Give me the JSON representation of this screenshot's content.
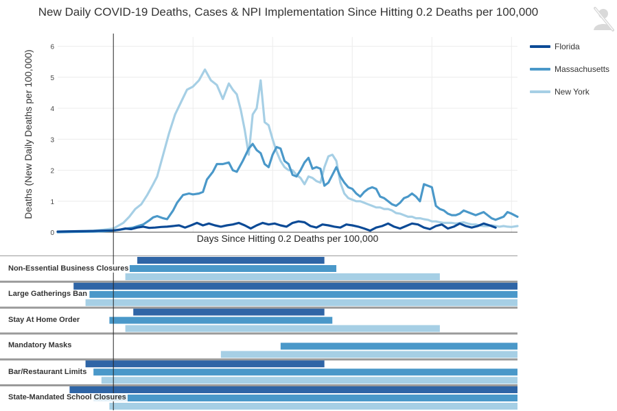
{
  "title": "New Daily  COVID-19 Deaths, Cases & NPI Implementation Since Hitting 0.2 Deaths per 100,000",
  "icon": "person-off-icon",
  "colors": {
    "Florida": "#0b4a96",
    "Massachusetts": "#4a98c9",
    "New York": "#a6cfe5"
  },
  "chart_data": {
    "type": "line",
    "title": "New Daily  COVID-19 Deaths, Cases & NPI Implementation Since Hitting 0.2 Deaths per 100,000",
    "xlabel": "Days Since Hitting 0.2 Deaths per 100,000",
    "ylabel": "Deaths (New Daily Deaths per 100,000)",
    "ylim": [
      0,
      6.3
    ],
    "xlim": [
      -28,
      203
    ],
    "yticks": [
      "0",
      "1",
      "2",
      "3",
      "4",
      "5",
      "6"
    ],
    "grid": true,
    "legend_position": "right",
    "series": [
      {
        "name": "Florida",
        "x": [
          -28,
          -20,
          -10,
          -5,
          0,
          3,
          6,
          9,
          12,
          15,
          18,
          21,
          24,
          27,
          30,
          33,
          36,
          39,
          42,
          45,
          48,
          51,
          54,
          57,
          60,
          63,
          66,
          69,
          72,
          75,
          78,
          81,
          84,
          87,
          90,
          93,
          96,
          99,
          102,
          105,
          108,
          111,
          114,
          117,
          120,
          123,
          126,
          129,
          132,
          135,
          138,
          141,
          144,
          147,
          150,
          153,
          156,
          159,
          162,
          165,
          168,
          171,
          174,
          177,
          180,
          183,
          186,
          189,
          192
        ],
        "y": [
          0.02,
          0.03,
          0.04,
          0.05,
          0.06,
          0.08,
          0.12,
          0.1,
          0.15,
          0.18,
          0.14,
          0.15,
          0.17,
          0.18,
          0.2,
          0.22,
          0.15,
          0.22,
          0.3,
          0.22,
          0.28,
          0.22,
          0.18,
          0.22,
          0.25,
          0.3,
          0.22,
          0.12,
          0.22,
          0.3,
          0.25,
          0.28,
          0.22,
          0.18,
          0.3,
          0.35,
          0.32,
          0.2,
          0.15,
          0.25,
          0.22,
          0.18,
          0.15,
          0.25,
          0.22,
          0.18,
          0.12,
          0.05,
          0.15,
          0.2,
          0.28,
          0.18,
          0.12,
          0.2,
          0.28,
          0.25,
          0.15,
          0.1,
          0.2,
          0.25,
          0.12,
          0.18,
          0.28,
          0.2,
          0.15,
          0.2,
          0.28,
          0.22,
          0.15
        ]
      },
      {
        "name": "Massachusetts",
        "x": [
          -28,
          -20,
          -10,
          -5,
          0,
          5,
          10,
          15,
          18,
          20,
          22,
          25,
          27,
          30,
          32,
          35,
          38,
          40,
          43,
          45,
          47,
          50,
          52,
          55,
          58,
          60,
          62,
          65,
          68,
          70,
          72,
          74,
          76,
          78,
          80,
          82,
          84,
          86,
          88,
          90,
          92,
          94,
          96,
          98,
          100,
          102,
          104,
          106,
          108,
          110,
          112,
          114,
          116,
          118,
          120,
          122,
          124,
          126,
          128,
          130,
          132,
          134,
          136,
          138,
          140,
          142,
          144,
          146,
          148,
          150,
          152,
          154,
          156,
          158,
          160,
          162,
          164,
          166,
          168,
          170,
          172,
          174,
          176,
          178,
          180,
          182,
          184,
          186,
          188,
          190,
          192,
          194,
          196,
          198,
          200,
          203
        ],
        "y": [
          0,
          0.01,
          0.02,
          0.03,
          0.05,
          0.1,
          0.15,
          0.25,
          0.38,
          0.48,
          0.52,
          0.45,
          0.42,
          0.7,
          0.95,
          1.2,
          1.25,
          1.22,
          1.25,
          1.3,
          1.7,
          1.95,
          2.2,
          2.2,
          2.25,
          2.0,
          1.95,
          2.3,
          2.7,
          2.85,
          2.65,
          2.55,
          2.2,
          2.1,
          2.5,
          2.75,
          2.7,
          2.3,
          2.2,
          1.85,
          1.8,
          2.0,
          2.25,
          2.4,
          2.05,
          2.1,
          2.05,
          1.5,
          1.6,
          1.85,
          2.1,
          1.8,
          1.6,
          1.45,
          1.4,
          1.25,
          1.15,
          1.3,
          1.4,
          1.45,
          1.4,
          1.15,
          1.1,
          1.0,
          0.9,
          0.85,
          0.95,
          1.1,
          1.15,
          1.25,
          1.15,
          1.0,
          1.55,
          1.5,
          1.45,
          0.85,
          0.75,
          0.7,
          0.6,
          0.55,
          0.55,
          0.6,
          0.7,
          0.65,
          0.6,
          0.55,
          0.6,
          0.65,
          0.55,
          0.45,
          0.4,
          0.45,
          0.5,
          0.65,
          0.6,
          0.5
        ]
      },
      {
        "name": "New York",
        "x": [
          -28,
          -20,
          -10,
          -5,
          0,
          5,
          8,
          11,
          14,
          17,
          20,
          22,
          25,
          28,
          31,
          34,
          37,
          40,
          43,
          46,
          49,
          52,
          55,
          58,
          60,
          62,
          64,
          66,
          68,
          70,
          72,
          74,
          76,
          78,
          80,
          82,
          84,
          86,
          88,
          90,
          92,
          94,
          96,
          98,
          100,
          102,
          104,
          106,
          108,
          110,
          112,
          114,
          116,
          118,
          120,
          122,
          124,
          126,
          128,
          130,
          132,
          134,
          136,
          138,
          140,
          142,
          144,
          146,
          148,
          150,
          152,
          154,
          156,
          158,
          160,
          162,
          164,
          166,
          168,
          170,
          172,
          174,
          176,
          178,
          180,
          182,
          184,
          186,
          188,
          190,
          192,
          194,
          196,
          198,
          200,
          203
        ],
        "y": [
          0.02,
          0.03,
          0.05,
          0.08,
          0.12,
          0.3,
          0.5,
          0.75,
          0.9,
          1.2,
          1.55,
          1.8,
          2.5,
          3.2,
          3.8,
          4.2,
          4.6,
          4.7,
          4.9,
          5.25,
          4.9,
          4.75,
          4.3,
          4.8,
          4.6,
          4.45,
          3.95,
          3.3,
          2.5,
          3.8,
          4.0,
          4.9,
          3.55,
          3.45,
          3.0,
          2.6,
          2.3,
          2.1,
          2.0,
          2.0,
          1.85,
          1.75,
          1.55,
          1.8,
          1.75,
          1.65,
          1.6,
          2.1,
          2.45,
          2.5,
          2.3,
          1.6,
          1.25,
          1.1,
          1.05,
          1.0,
          1.0,
          0.95,
          0.9,
          0.85,
          0.8,
          0.8,
          0.75,
          0.75,
          0.7,
          0.62,
          0.6,
          0.55,
          0.5,
          0.5,
          0.45,
          0.45,
          0.42,
          0.4,
          0.35,
          0.35,
          0.32,
          0.3,
          0.3,
          0.3,
          0.28,
          0.3,
          0.32,
          0.28,
          0.25,
          0.25,
          0.22,
          0.2,
          0.2,
          0.22,
          0.2,
          0.18,
          0.2,
          0.18,
          0.17,
          0.2
        ]
      }
    ],
    "npi": {
      "policies": [
        "Non-Essential Business Closures",
        "Large Gatherings Ban",
        "Stay At Home Order",
        "Mandatory Masks",
        "Bar/Restaurant Limits",
        "State-Mandated School Closures"
      ],
      "bars": [
        {
          "policy": 0,
          "state": "Florida",
          "start": 12,
          "end": 106
        },
        {
          "policy": 0,
          "state": "Massachusetts",
          "start": 8,
          "end": 112
        },
        {
          "policy": 0,
          "state": "New York",
          "start": 6,
          "end": 164
        },
        {
          "policy": 1,
          "state": "Florida",
          "start": -20,
          "end": 203
        },
        {
          "policy": 1,
          "state": "Massachusetts",
          "start": -12,
          "end": 203
        },
        {
          "policy": 1,
          "state": "New York",
          "start": -14,
          "end": 203
        },
        {
          "policy": 2,
          "state": "Florida",
          "start": 10,
          "end": 106
        },
        {
          "policy": 2,
          "state": "Massachusetts",
          "start": -2,
          "end": 110
        },
        {
          "policy": 2,
          "state": "New York",
          "start": 6,
          "end": 164
        },
        {
          "policy": 3,
          "state": "Massachusetts",
          "start": 84,
          "end": 203
        },
        {
          "policy": 3,
          "state": "New York",
          "start": 54,
          "end": 203
        },
        {
          "policy": 4,
          "state": "Florida",
          "start": -14,
          "end": 106
        },
        {
          "policy": 4,
          "state": "Massachusetts",
          "start": -10,
          "end": 203
        },
        {
          "policy": 4,
          "state": "New York",
          "start": -6,
          "end": 203
        },
        {
          "policy": 5,
          "state": "Florida",
          "start": -22,
          "end": 203
        },
        {
          "policy": 5,
          "state": "Massachusetts",
          "start": -10,
          "end": 203
        },
        {
          "policy": 5,
          "state": "New York",
          "start": -2,
          "end": 203
        }
      ]
    }
  }
}
